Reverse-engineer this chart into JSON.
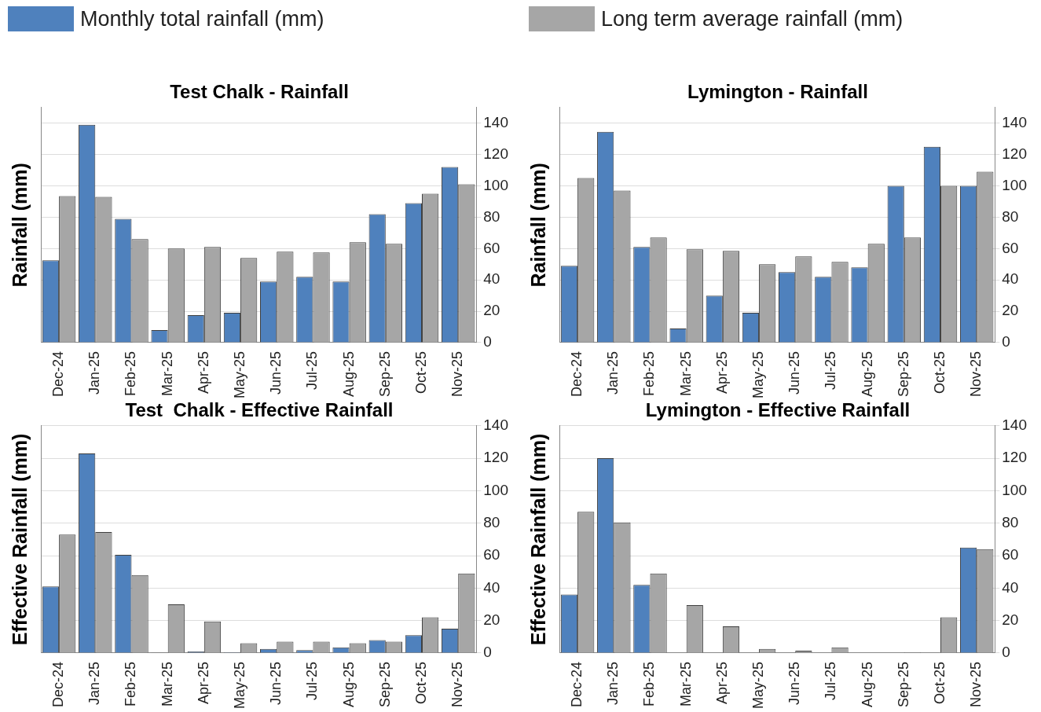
{
  "chart_data": [
    {
      "type": "bar",
      "title": "Test Chalk - Rainfall",
      "ylabel": "Rainfall (mm)",
      "categories": [
        "Dec-24",
        "Jan-25",
        "Feb-25",
        "Mar-25",
        "Apr-25",
        "May-25",
        "Jun-25",
        "Jul-25",
        "Aug-25",
        "Sep-25",
        "Oct-25",
        "Nov-25"
      ],
      "ylim": [
        0,
        150
      ],
      "yticks": [
        0,
        20,
        40,
        60,
        80,
        100,
        120,
        140
      ],
      "grid": "y",
      "legend": "top",
      "series": [
        {
          "name": "Monthly total rainfall (mm)",
          "color": "#4f81bd",
          "values": [
            52.5,
            139,
            79,
            8,
            17.5,
            19,
            39,
            42,
            39,
            82,
            89,
            112
          ]
        },
        {
          "name": "Long term average rainfall (mm)",
          "color": "#a6a6a6",
          "values": [
            93.5,
            93,
            66,
            60,
            61,
            54,
            58,
            57.5,
            64,
            63,
            95,
            101
          ]
        }
      ]
    },
    {
      "type": "bar",
      "title": "Lymington - Rainfall",
      "ylabel": "Rainfall (mm)",
      "categories": [
        "Dec-24",
        "Jan-25",
        "Feb-25",
        "Mar-25",
        "Apr-25",
        "May-25",
        "Jun-25",
        "Jul-25",
        "Aug-25",
        "Sep-25",
        "Oct-25",
        "Nov-25"
      ],
      "ylim": [
        0,
        150
      ],
      "yticks": [
        0,
        20,
        40,
        60,
        80,
        100,
        120,
        140
      ],
      "grid": "y",
      "series": [
        {
          "color": "#4f81bd",
          "values": [
            49,
            134.5,
            61,
            9,
            30,
            19,
            45,
            42,
            48,
            100,
            125,
            100
          ]
        },
        {
          "color": "#a6a6a6",
          "values": [
            105,
            97,
            67,
            59.5,
            58.5,
            50,
            55,
            51.5,
            63,
            67,
            100,
            109
          ]
        }
      ]
    },
    {
      "type": "bar",
      "title": "Test  Chalk - Effective Rainfall",
      "ylabel": "Effective Rainfall (mm)",
      "categories": [
        "Dec-24",
        "Jan-25",
        "Feb-25",
        "Mar-25",
        "Apr-25",
        "May-25",
        "Jun-25",
        "Jul-25",
        "Aug-25",
        "Sep-25",
        "Oct-25",
        "Nov-25"
      ],
      "ylim": [
        0,
        140
      ],
      "yticks": [
        0,
        20,
        40,
        60,
        80,
        100,
        120,
        140
      ],
      "grid": "y",
      "series": [
        {
          "color": "#4f81bd",
          "values": [
            41,
            123,
            60.5,
            0.3,
            1,
            0.5,
            2.5,
            1.8,
            3.5,
            8,
            11,
            15
          ]
        },
        {
          "color": "#a6a6a6",
          "values": [
            73,
            74.5,
            48,
            30,
            19.5,
            6,
            7,
            7,
            6,
            7,
            22,
            49
          ]
        }
      ]
    },
    {
      "type": "bar",
      "title": "Lymington - Effective Rainfall",
      "ylabel": "Effective Rainfall (mm)",
      "categories": [
        "Dec-24",
        "Jan-25",
        "Feb-25",
        "Mar-25",
        "Apr-25",
        "May-25",
        "Jun-25",
        "Jul-25",
        "Aug-25",
        "Sep-25",
        "Oct-25",
        "Nov-25"
      ],
      "ylim": [
        0,
        140
      ],
      "yticks": [
        0,
        20,
        40,
        60,
        80,
        100,
        120,
        140
      ],
      "grid": "y",
      "series": [
        {
          "color": "#4f81bd",
          "values": [
            36,
            120,
            42,
            0,
            0,
            0,
            0,
            0,
            0,
            0,
            0,
            65
          ]
        },
        {
          "color": "#a6a6a6",
          "values": [
            87,
            80.5,
            49,
            29.5,
            16.5,
            2.5,
            1.5,
            3.5,
            0,
            0.5,
            22,
            64
          ]
        }
      ]
    }
  ]
}
